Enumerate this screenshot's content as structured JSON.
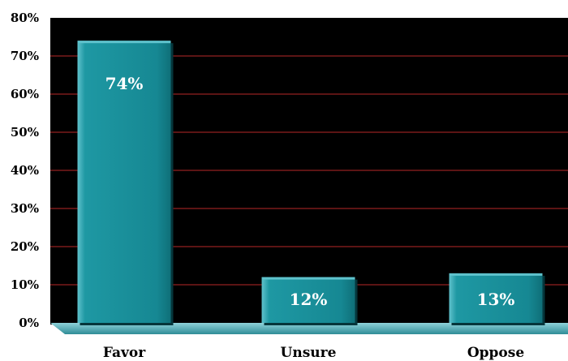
{
  "chart_data": {
    "type": "bar",
    "categories": [
      "Favor",
      "Unsure",
      "Oppose"
    ],
    "values": [
      74,
      12,
      13
    ],
    "data_labels": [
      "74%",
      "12%",
      "13%"
    ],
    "y_ticks": [
      "0%",
      "10%",
      "20%",
      "30%",
      "40%",
      "50%",
      "60%",
      "70%",
      "80%"
    ],
    "ylim": [
      0,
      80
    ],
    "grid": true,
    "colors": {
      "background": "#000000",
      "gridline": "#7a1a1a",
      "bar": "#1a8f9a",
      "bar_top": "#5fc2cc",
      "floor": "#4ea9b3",
      "label_text": "#ffffff",
      "axis_text": "#000000"
    }
  }
}
